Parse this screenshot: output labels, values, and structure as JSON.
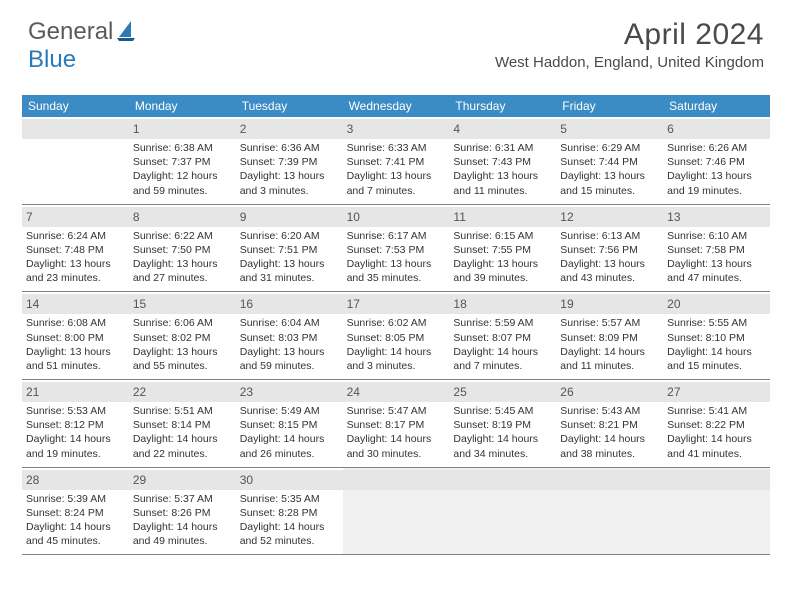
{
  "logo": {
    "general": "General",
    "blue": "Blue"
  },
  "title": "April 2024",
  "location": "West Haddon, England, United Kingdom",
  "colors": {
    "header_bg": "#3b8bc4",
    "header_text": "#ffffff",
    "date_bg": "#e6e6e6",
    "shaded_bg": "#f0f0f0",
    "border": "#808080",
    "text": "#333333",
    "logo_gray": "#5a5a5a",
    "logo_blue": "#2a7ab8"
  },
  "day_names": [
    "Sunday",
    "Monday",
    "Tuesday",
    "Wednesday",
    "Thursday",
    "Friday",
    "Saturday"
  ],
  "weeks": [
    [
      {
        "date": "",
        "lines": []
      },
      {
        "date": "1",
        "lines": [
          "Sunrise: 6:38 AM",
          "Sunset: 7:37 PM",
          "Daylight: 12 hours",
          "and 59 minutes."
        ]
      },
      {
        "date": "2",
        "lines": [
          "Sunrise: 6:36 AM",
          "Sunset: 7:39 PM",
          "Daylight: 13 hours",
          "and 3 minutes."
        ]
      },
      {
        "date": "3",
        "lines": [
          "Sunrise: 6:33 AM",
          "Sunset: 7:41 PM",
          "Daylight: 13 hours",
          "and 7 minutes."
        ]
      },
      {
        "date": "4",
        "lines": [
          "Sunrise: 6:31 AM",
          "Sunset: 7:43 PM",
          "Daylight: 13 hours",
          "and 11 minutes."
        ]
      },
      {
        "date": "5",
        "lines": [
          "Sunrise: 6:29 AM",
          "Sunset: 7:44 PM",
          "Daylight: 13 hours",
          "and 15 minutes."
        ]
      },
      {
        "date": "6",
        "lines": [
          "Sunrise: 6:26 AM",
          "Sunset: 7:46 PM",
          "Daylight: 13 hours",
          "and 19 minutes."
        ]
      }
    ],
    [
      {
        "date": "7",
        "lines": [
          "Sunrise: 6:24 AM",
          "Sunset: 7:48 PM",
          "Daylight: 13 hours",
          "and 23 minutes."
        ]
      },
      {
        "date": "8",
        "lines": [
          "Sunrise: 6:22 AM",
          "Sunset: 7:50 PM",
          "Daylight: 13 hours",
          "and 27 minutes."
        ]
      },
      {
        "date": "9",
        "lines": [
          "Sunrise: 6:20 AM",
          "Sunset: 7:51 PM",
          "Daylight: 13 hours",
          "and 31 minutes."
        ]
      },
      {
        "date": "10",
        "lines": [
          "Sunrise: 6:17 AM",
          "Sunset: 7:53 PM",
          "Daylight: 13 hours",
          "and 35 minutes."
        ]
      },
      {
        "date": "11",
        "lines": [
          "Sunrise: 6:15 AM",
          "Sunset: 7:55 PM",
          "Daylight: 13 hours",
          "and 39 minutes."
        ]
      },
      {
        "date": "12",
        "lines": [
          "Sunrise: 6:13 AM",
          "Sunset: 7:56 PM",
          "Daylight: 13 hours",
          "and 43 minutes."
        ]
      },
      {
        "date": "13",
        "lines": [
          "Sunrise: 6:10 AM",
          "Sunset: 7:58 PM",
          "Daylight: 13 hours",
          "and 47 minutes."
        ]
      }
    ],
    [
      {
        "date": "14",
        "lines": [
          "Sunrise: 6:08 AM",
          "Sunset: 8:00 PM",
          "Daylight: 13 hours",
          "and 51 minutes."
        ]
      },
      {
        "date": "15",
        "lines": [
          "Sunrise: 6:06 AM",
          "Sunset: 8:02 PM",
          "Daylight: 13 hours",
          "and 55 minutes."
        ]
      },
      {
        "date": "16",
        "lines": [
          "Sunrise: 6:04 AM",
          "Sunset: 8:03 PM",
          "Daylight: 13 hours",
          "and 59 minutes."
        ]
      },
      {
        "date": "17",
        "lines": [
          "Sunrise: 6:02 AM",
          "Sunset: 8:05 PM",
          "Daylight: 14 hours",
          "and 3 minutes."
        ]
      },
      {
        "date": "18",
        "lines": [
          "Sunrise: 5:59 AM",
          "Sunset: 8:07 PM",
          "Daylight: 14 hours",
          "and 7 minutes."
        ]
      },
      {
        "date": "19",
        "lines": [
          "Sunrise: 5:57 AM",
          "Sunset: 8:09 PM",
          "Daylight: 14 hours",
          "and 11 minutes."
        ]
      },
      {
        "date": "20",
        "lines": [
          "Sunrise: 5:55 AM",
          "Sunset: 8:10 PM",
          "Daylight: 14 hours",
          "and 15 minutes."
        ]
      }
    ],
    [
      {
        "date": "21",
        "lines": [
          "Sunrise: 5:53 AM",
          "Sunset: 8:12 PM",
          "Daylight: 14 hours",
          "and 19 minutes."
        ]
      },
      {
        "date": "22",
        "lines": [
          "Sunrise: 5:51 AM",
          "Sunset: 8:14 PM",
          "Daylight: 14 hours",
          "and 22 minutes."
        ]
      },
      {
        "date": "23",
        "lines": [
          "Sunrise: 5:49 AM",
          "Sunset: 8:15 PM",
          "Daylight: 14 hours",
          "and 26 minutes."
        ]
      },
      {
        "date": "24",
        "lines": [
          "Sunrise: 5:47 AM",
          "Sunset: 8:17 PM",
          "Daylight: 14 hours",
          "and 30 minutes."
        ]
      },
      {
        "date": "25",
        "lines": [
          "Sunrise: 5:45 AM",
          "Sunset: 8:19 PM",
          "Daylight: 14 hours",
          "and 34 minutes."
        ]
      },
      {
        "date": "26",
        "lines": [
          "Sunrise: 5:43 AM",
          "Sunset: 8:21 PM",
          "Daylight: 14 hours",
          "and 38 minutes."
        ]
      },
      {
        "date": "27",
        "lines": [
          "Sunrise: 5:41 AM",
          "Sunset: 8:22 PM",
          "Daylight: 14 hours",
          "and 41 minutes."
        ]
      }
    ],
    [
      {
        "date": "28",
        "lines": [
          "Sunrise: 5:39 AM",
          "Sunset: 8:24 PM",
          "Daylight: 14 hours",
          "and 45 minutes."
        ]
      },
      {
        "date": "29",
        "lines": [
          "Sunrise: 5:37 AM",
          "Sunset: 8:26 PM",
          "Daylight: 14 hours",
          "and 49 minutes."
        ]
      },
      {
        "date": "30",
        "lines": [
          "Sunrise: 5:35 AM",
          "Sunset: 8:28 PM",
          "Daylight: 14 hours",
          "and 52 minutes."
        ]
      },
      {
        "date": "",
        "lines": [],
        "shaded": true
      },
      {
        "date": "",
        "lines": [],
        "shaded": true
      },
      {
        "date": "",
        "lines": [],
        "shaded": true
      },
      {
        "date": "",
        "lines": [],
        "shaded": true
      }
    ]
  ]
}
